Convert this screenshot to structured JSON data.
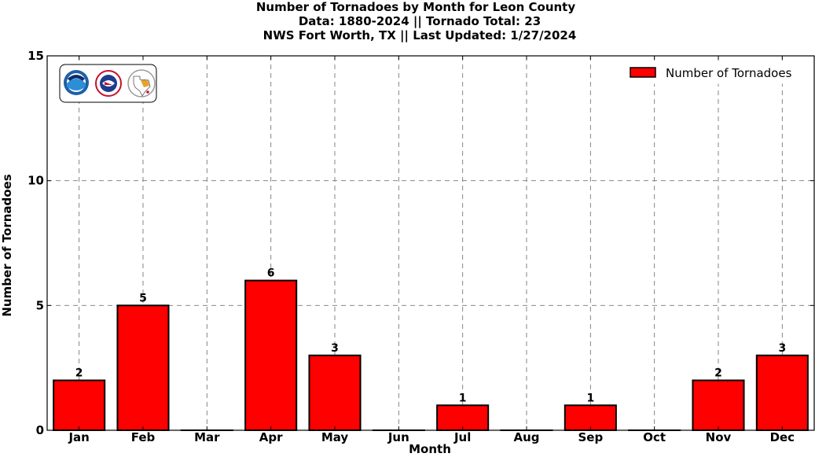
{
  "chart_data": {
    "type": "bar",
    "title_lines": [
      "Number of Tornadoes by Month for Leon County",
      "Data: 1880-2024 || Tornado Total: 23",
      "NWS Fort Worth, TX || Last Updated: 1/27/2024"
    ],
    "xlabel": "Month",
    "ylabel": "Number of Tornadoes",
    "categories": [
      "Jan",
      "Feb",
      "Mar",
      "Apr",
      "May",
      "Jun",
      "Jul",
      "Aug",
      "Sep",
      "Oct",
      "Nov",
      "Dec"
    ],
    "series": [
      {
        "name": "Number of Tornadoes",
        "values": [
          2,
          5,
          0,
          6,
          3,
          0,
          1,
          0,
          1,
          0,
          2,
          3
        ],
        "color": "#ff0000"
      }
    ],
    "ylim": [
      0,
      15
    ],
    "yticks": [
      0,
      5,
      10,
      15
    ],
    "grid": true,
    "legend_position": "top-right",
    "logos": [
      "noaa-logo",
      "national-weather-service-logo",
      "texas-map-logo"
    ]
  }
}
